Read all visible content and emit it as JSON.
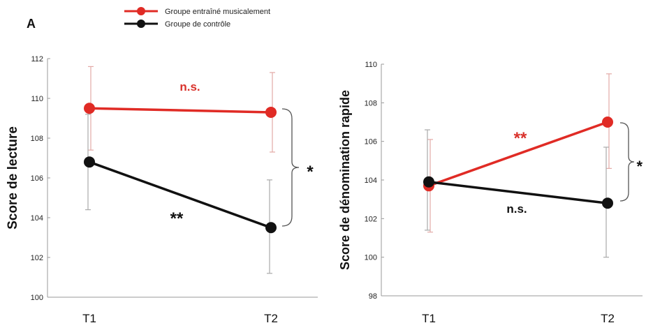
{
  "panel_label": "A",
  "legend": {
    "items": [
      {
        "label": "Groupe entraîné musicalement",
        "color": "#e02b25"
      },
      {
        "label": "Groupe de contrôle",
        "color": "#111111"
      }
    ]
  },
  "chart_data": [
    {
      "type": "line",
      "ylabel": "Score de lecture",
      "categories": [
        "T1",
        "T2"
      ],
      "ylim": [
        100,
        112
      ],
      "yticks": [
        "100",
        "102",
        "104",
        "106",
        "108",
        "110",
        "112"
      ],
      "series": [
        {
          "name": "Groupe entraîné musicalement",
          "color": "#e02b25",
          "values": [
            109.5,
            109.3
          ],
          "err_low": [
            107.4,
            107.3
          ],
          "err_high": [
            111.6,
            111.3
          ]
        },
        {
          "name": "Groupe de contrôle",
          "color": "#111111",
          "values": [
            106.8,
            103.5
          ],
          "err_low": [
            104.4,
            101.2
          ],
          "err_high": [
            109.2,
            105.9
          ]
        }
      ],
      "annotations": {
        "red_sig": "n.s.",
        "black_sig": "**",
        "between_sig": "*"
      }
    },
    {
      "type": "line",
      "ylabel": "Score de dénomination rapide",
      "categories": [
        "T1",
        "T2"
      ],
      "ylim": [
        98,
        110
      ],
      "yticks": [
        "98",
        "100",
        "102",
        "104",
        "106",
        "108",
        "110"
      ],
      "series": [
        {
          "name": "Groupe entraîné musicalement",
          "color": "#e02b25",
          "values": [
            103.7,
            107.0
          ],
          "err_low": [
            101.3,
            104.6
          ],
          "err_high": [
            106.1,
            109.5
          ]
        },
        {
          "name": "Groupe de contrôle",
          "color": "#111111",
          "values": [
            103.9,
            102.8
          ],
          "err_low": [
            101.4,
            100.0
          ],
          "err_high": [
            106.6,
            105.7
          ]
        }
      ],
      "annotations": {
        "red_sig": "**",
        "black_sig": "n.s.",
        "between_sig": "*"
      }
    }
  ]
}
